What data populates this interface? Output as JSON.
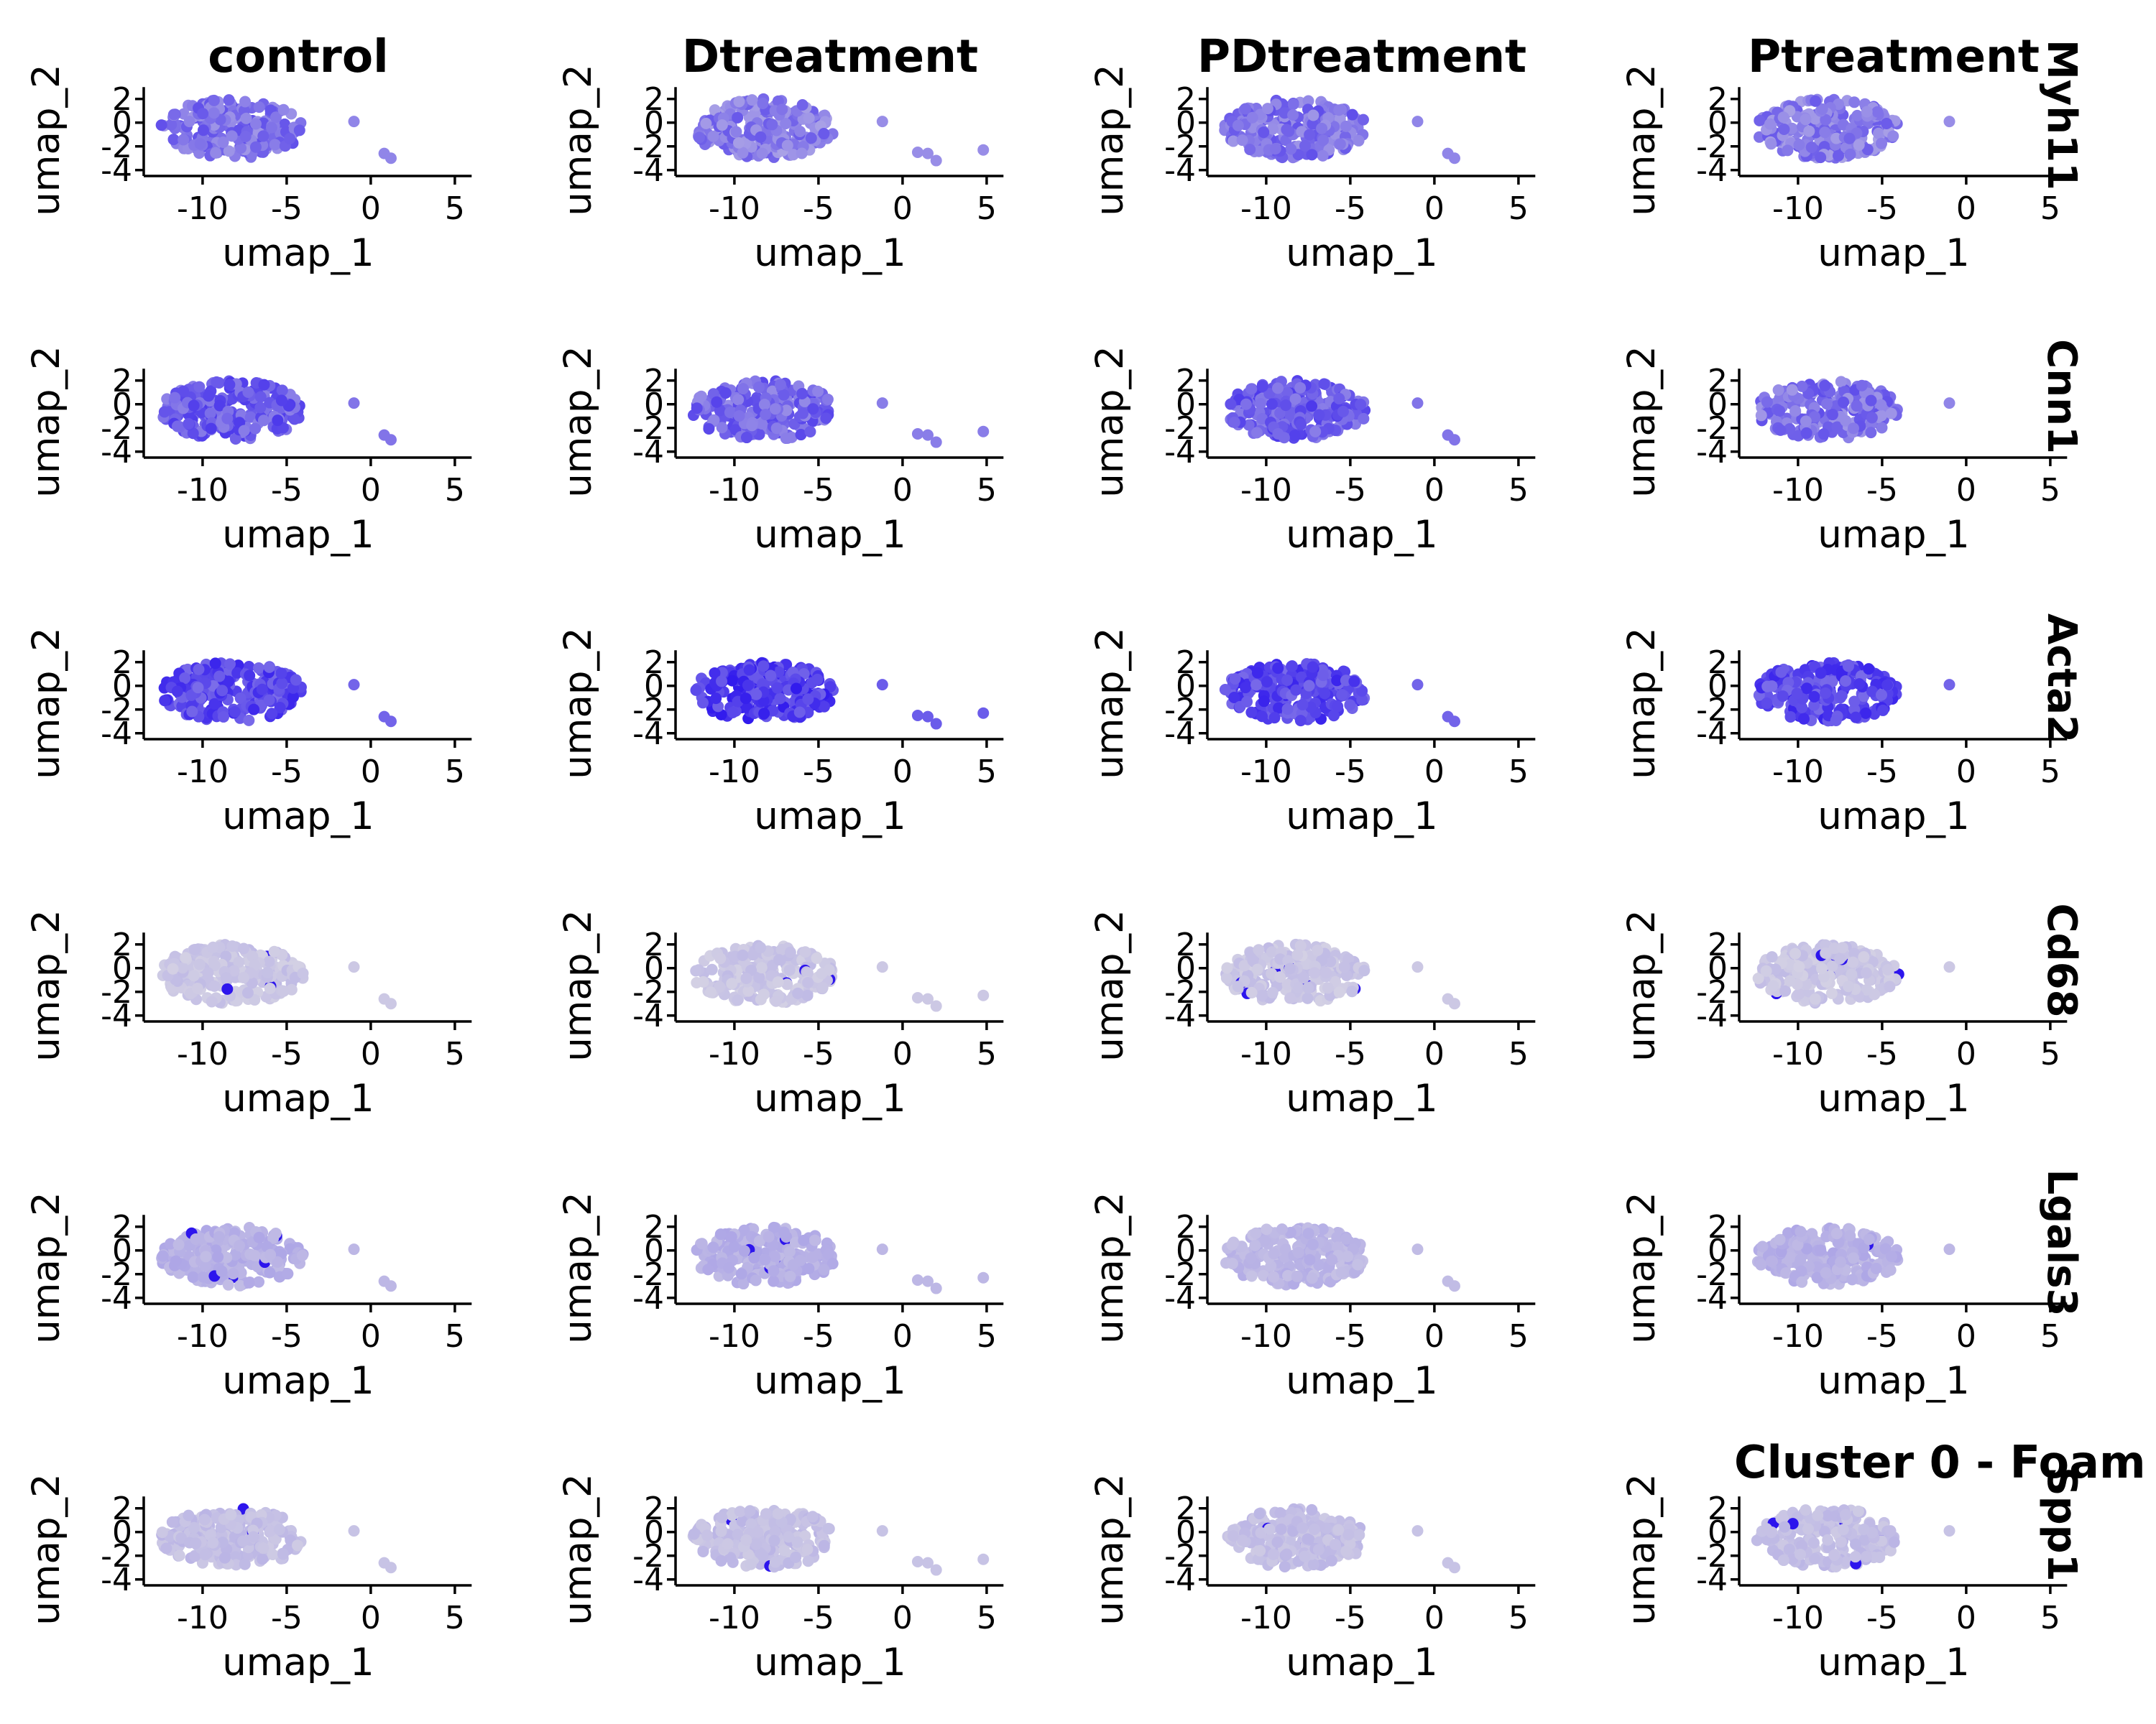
{
  "chart_data": {
    "type": "scatter",
    "description_kind": "faceted UMAP feature plot (gene expression per condition)",
    "conditions": [
      "control",
      "Dtreatment",
      "PDtreatment",
      "Ptreatment"
    ],
    "genes": [
      "Myh11",
      "Cnn1",
      "Acta2",
      "Cd68",
      "Lgals3",
      "Spp1"
    ],
    "xlabel": "umap_1",
    "ylabel": "umap_2",
    "xlim": [
      -13.5,
      6
    ],
    "ylim": [
      -4.5,
      3
    ],
    "x_ticks": [
      -10,
      -5,
      0,
      5
    ],
    "x_tick_labels": [
      "-10",
      "-5",
      "0",
      "5"
    ],
    "y_ticks": [
      2,
      0,
      -2,
      -4
    ],
    "y_tick_labels": [
      "2",
      "0",
      "-2",
      "-4"
    ],
    "caption": "Cluster 0 - Foam",
    "color_low": "#d3d0e4",
    "color_high": "#1a00ee",
    "main_cluster": {
      "x_range": [
        -12.5,
        -4
      ],
      "y_range": [
        -3,
        2
      ]
    },
    "outliers": [
      {
        "x": -1.0,
        "y": 0.1
      },
      {
        "x": 0.8,
        "y": -2.6
      },
      {
        "x": 1.2,
        "y": -3.0
      }
    ],
    "d_outliers": [
      {
        "x": -1.2,
        "y": 0.1
      },
      {
        "x": 0.9,
        "y": -2.5
      },
      {
        "x": 1.5,
        "y": -2.6
      },
      {
        "x": 2.0,
        "y": -3.2
      },
      {
        "x": 4.8,
        "y": -2.3
      }
    ],
    "expression_level": {
      "Myh11": [
        0.45,
        0.4,
        0.45,
        0.4
      ],
      "Cnn1": [
        0.55,
        0.5,
        0.55,
        0.45
      ],
      "Acta2": [
        0.65,
        0.7,
        0.65,
        0.65
      ],
      "Cd68": [
        0.05,
        0.05,
        0.05,
        0.05
      ],
      "Lgals3": [
        0.15,
        0.15,
        0.12,
        0.15
      ],
      "Spp1": [
        0.08,
        0.08,
        0.08,
        0.08
      ]
    },
    "row_label_positions": "right",
    "column_title_positions": "top"
  }
}
